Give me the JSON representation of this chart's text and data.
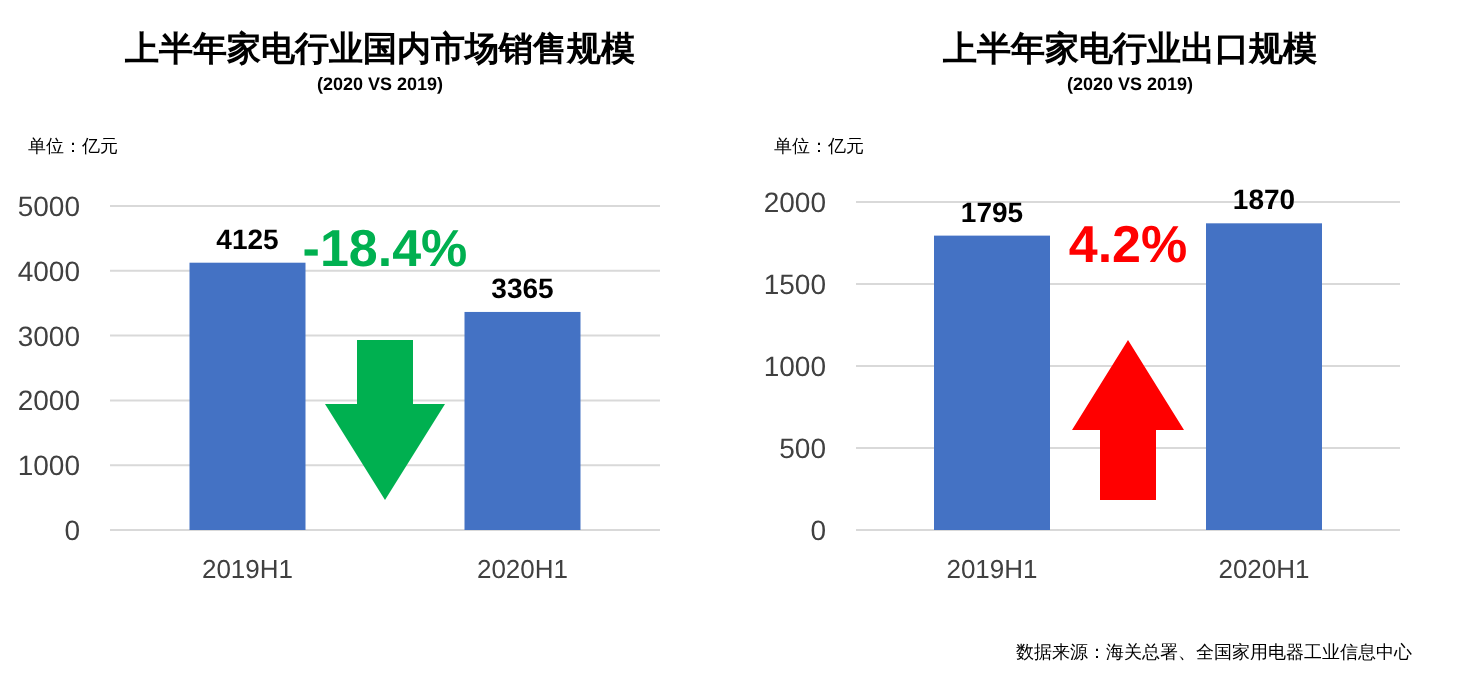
{
  "chart_data": [
    {
      "type": "bar",
      "title": "上半年家电行业国内市场销售规模",
      "subtitle": "(2020 VS 2019)",
      "ylabel": "单位：亿元",
      "categories": [
        "2019H1",
        "2020H1"
      ],
      "series": [
        {
          "color": "#4472c4",
          "values": [
            4125,
            3365
          ]
        }
      ],
      "ylim": [
        0,
        5000
      ],
      "yticks": [
        0,
        1000,
        2000,
        3000,
        4000,
        5000
      ],
      "grid": "y",
      "data_labels": true,
      "annotations": [
        "-18.4%"
      ]
    },
    {
      "type": "bar",
      "title": "上半年家电行业出口规模",
      "subtitle": "(2020 VS 2019)",
      "ylabel": "单位：亿元",
      "categories": [
        "2019H1",
        "2020H1"
      ],
      "series": [
        {
          "color": "#4472c4",
          "values": [
            1795,
            1870
          ]
        }
      ],
      "ylim": [
        0,
        2000
      ],
      "yticks": [
        0,
        500,
        1000,
        1500,
        2000
      ],
      "grid": "y",
      "data_labels": true,
      "annotations": [
        "4.2%",
        "数据来源：海关总署、全国家用电器工业信息中心"
      ]
    }
  ]
}
